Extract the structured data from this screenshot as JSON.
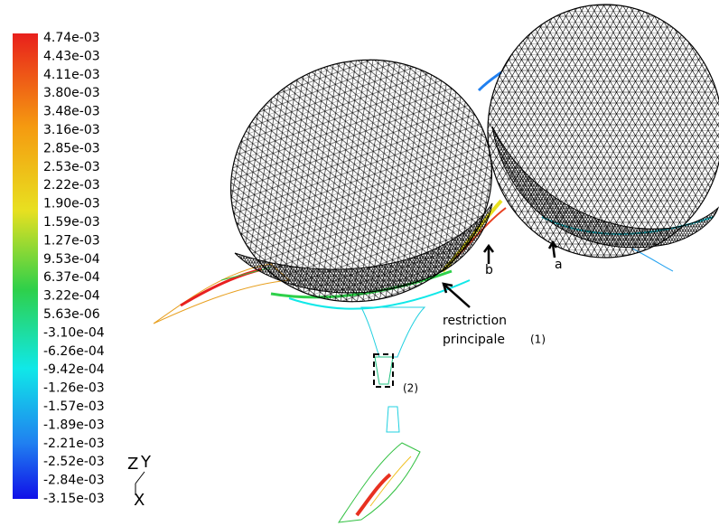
{
  "colorbar": {
    "labels": [
      "4.74e-03",
      "4.43e-03",
      "4.11e-03",
      "3.80e-03",
      "3.48e-03",
      "3.16e-03",
      "2.85e-03",
      "2.53e-03",
      "2.22e-03",
      "1.90e-03",
      "1.59e-03",
      "1.27e-03",
      "9.53e-04",
      "6.37e-04",
      "3.22e-04",
      "5.63e-06",
      "-3.10e-04",
      "-6.26e-04",
      "-9.42e-04",
      "-1.26e-03",
      "-1.57e-03",
      "-1.89e-03",
      "-2.21e-03",
      "-2.52e-03",
      "-2.84e-03",
      "-3.15e-03"
    ]
  },
  "annotations": {
    "b": "b",
    "a": "a",
    "restriction_line1": "restriction",
    "restriction_line2": "principale",
    "marker1": "(1)",
    "marker2": "(2)"
  },
  "axes": {
    "z": "Z",
    "y": "Y",
    "x": "X"
  }
}
